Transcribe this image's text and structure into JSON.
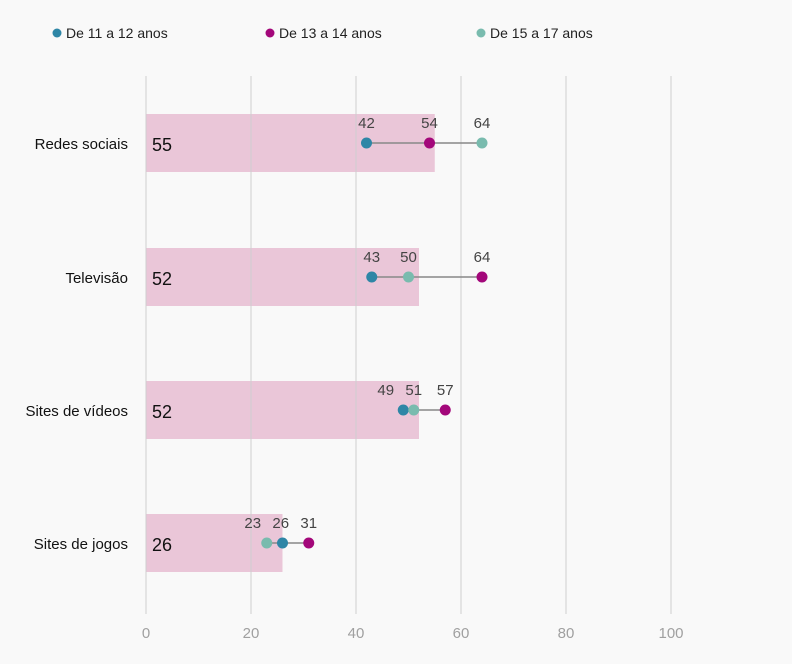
{
  "chart_data": {
    "type": "bar",
    "title": "",
    "categories": [
      "Redes sociais",
      "Televisão",
      "Sites de vídeos",
      "Sites de jogos"
    ],
    "values": [
      55,
      52,
      52,
      26
    ],
    "series": [
      {
        "name": "De 11 a 12 anos",
        "color": "#2e86a6",
        "values": [
          42,
          43,
          49,
          26
        ]
      },
      {
        "name": "De 13 a 14 anos",
        "color": "#a3077a",
        "values": [
          54,
          64,
          57,
          31
        ]
      },
      {
        "name": "De 15 a 17 anos",
        "color": "#79bbae",
        "values": [
          64,
          50,
          51,
          23
        ]
      }
    ],
    "bar_color": "#eac6d8",
    "xlim": [
      0,
      100
    ],
    "xticks": [
      "0",
      "20",
      "40",
      "60",
      "80",
      "100"
    ],
    "grid": true,
    "legend": "top",
    "xlabel": "",
    "ylabel": ""
  }
}
